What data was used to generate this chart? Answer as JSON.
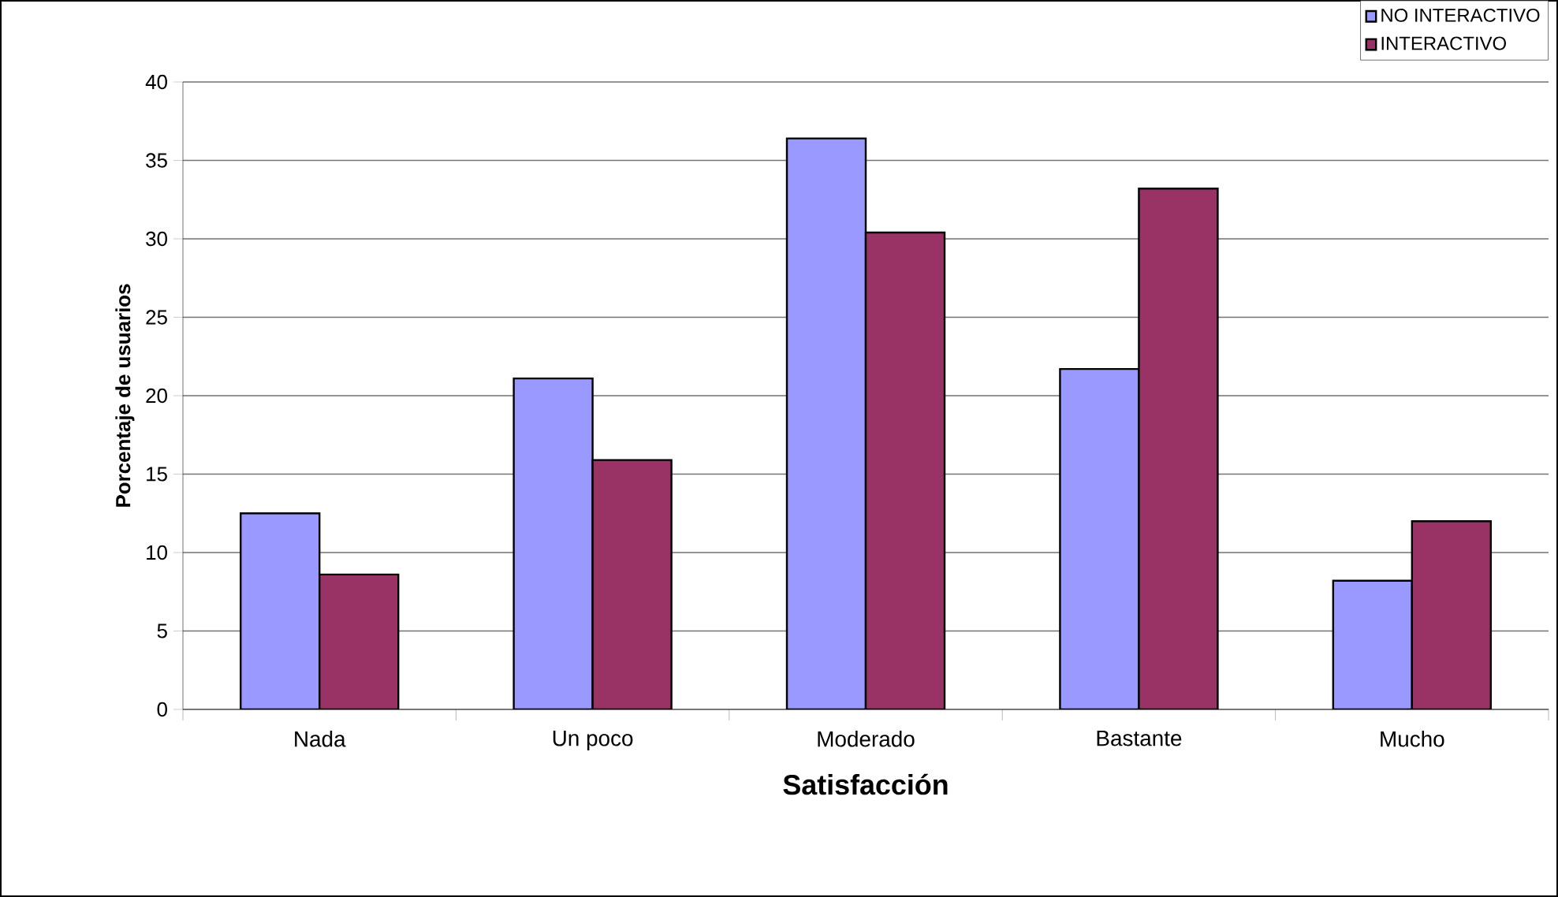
{
  "chart_data": {
    "type": "bar",
    "xlabel": "Satisfacción",
    "ylabel": "Porcentaje de usuarios",
    "categories": [
      "Nada",
      "Un poco",
      "Moderado",
      "Bastante",
      "Mucho"
    ],
    "series": [
      {
        "name": "NO INTERACTIVO",
        "color": "#9999ff",
        "values": [
          12.5,
          21.1,
          36.4,
          21.7,
          8.2
        ]
      },
      {
        "name": "INTERACTIVO",
        "color": "#993366",
        "values": [
          8.6,
          15.9,
          30.4,
          33.2,
          12.0
        ]
      }
    ],
    "ylim": [
      0,
      40
    ],
    "yticks": [
      0,
      5,
      10,
      15,
      20,
      25,
      30,
      35,
      40
    ],
    "grid": "y",
    "legend": "top right"
  }
}
